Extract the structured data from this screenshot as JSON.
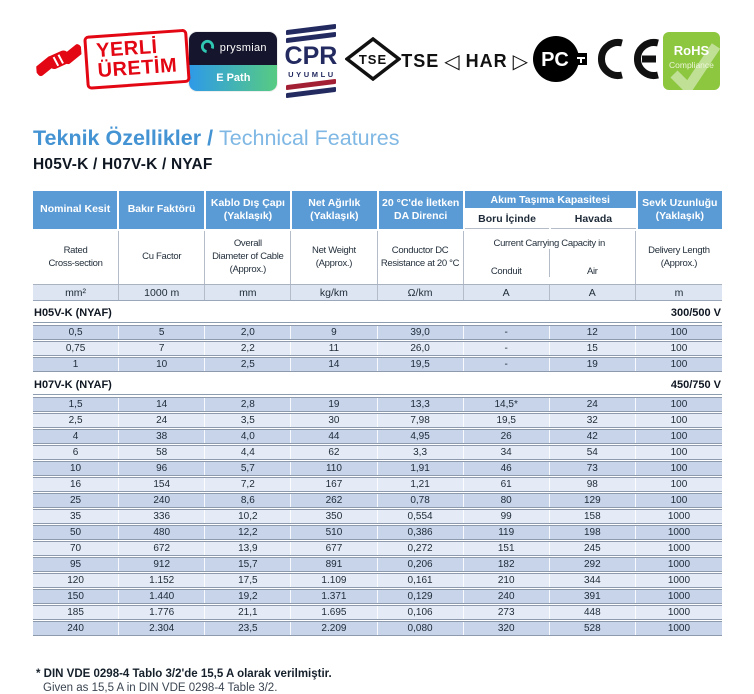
{
  "logos": {
    "yerli_uretim": {
      "line1": "YERLİ",
      "line2": "ÜRETİM"
    },
    "prysmian": {
      "brand": "prysmian",
      "product": "E Path"
    },
    "cpr": {
      "title": "CPR",
      "subtitle": "UYUMLU"
    },
    "tse_diamond": "TSE",
    "tse_har": {
      "tse": "TSE",
      "left_tri": "◁",
      "har": "HAR",
      "right_tri": "▷"
    },
    "pct": "PC",
    "rohs": {
      "line1": "RoHS",
      "line2": "Compliance"
    }
  },
  "title": {
    "tr": "Teknik Özellikler /",
    "en": "Technical Features"
  },
  "subtitle": "H05V-K / H07V-K / NYAF",
  "table": {
    "columns": [
      {
        "tr": "Nominal Kesit",
        "en": "Rated\nCross-section",
        "unit": "mm²"
      },
      {
        "tr": "Bakır Faktörü",
        "en": "Cu Factor",
        "unit": "1000 m"
      },
      {
        "tr": "Kablo Dış Çapı\n(Yaklaşık)",
        "en": "Overall\nDiameter of Cable\n(Approx.)",
        "unit": "mm"
      },
      {
        "tr": "Net Ağırlık\n(Yaklaşık)",
        "en": "Net Weight\n(Approx.)",
        "unit": "kg/km"
      },
      {
        "tr": "20 °C'de İletken\nDA Direnci",
        "en": "Conductor DC\nResistance at 20 °C",
        "unit": "Ω/km"
      },
      {
        "tr": "Boru İçinde",
        "en": "Conduit",
        "unit": "A"
      },
      {
        "tr": "Havada",
        "en": "Air",
        "unit": "A"
      },
      {
        "tr": "Sevk Uzunluğu\n(Yaklaşık)",
        "en": "Delivery Length\n(Approx.)",
        "unit": "m"
      }
    ],
    "current_group": {
      "tr": "Akım Taşıma Kapasitesi",
      "en": "Current Carrying Capacity in"
    },
    "sections": [
      {
        "name": "H05V-K (NYAF)",
        "voltage": "300/500 V",
        "rows": [
          [
            "0,5",
            "5",
            "2,0",
            "9",
            "39,0",
            "-",
            "12",
            "100"
          ],
          [
            "0,75",
            "7",
            "2,2",
            "11",
            "26,0",
            "-",
            "15",
            "100"
          ],
          [
            "1",
            "10",
            "2,5",
            "14",
            "19,5",
            "-",
            "19",
            "100"
          ]
        ]
      },
      {
        "name": "H07V-K (NYAF)",
        "voltage": "450/750 V",
        "rows": [
          [
            "1,5",
            "14",
            "2,8",
            "19",
            "13,3",
            "14,5*",
            "24",
            "100"
          ],
          [
            "2,5",
            "24",
            "3,5",
            "30",
            "7,98",
            "19,5",
            "32",
            "100"
          ],
          [
            "4",
            "38",
            "4,0",
            "44",
            "4,95",
            "26",
            "42",
            "100"
          ],
          [
            "6",
            "58",
            "4,4",
            "62",
            "3,3",
            "34",
            "54",
            "100"
          ],
          [
            "10",
            "96",
            "5,7",
            "110",
            "1,91",
            "46",
            "73",
            "100"
          ],
          [
            "16",
            "154",
            "7,2",
            "167",
            "1,21",
            "61",
            "98",
            "100"
          ],
          [
            "25",
            "240",
            "8,6",
            "262",
            "0,78",
            "80",
            "129",
            "100"
          ],
          [
            "35",
            "336",
            "10,2",
            "350",
            "0,554",
            "99",
            "158",
            "1000"
          ],
          [
            "50",
            "480",
            "12,2",
            "510",
            "0,386",
            "119",
            "198",
            "1000"
          ],
          [
            "70",
            "672",
            "13,9",
            "677",
            "0,272",
            "151",
            "245",
            "1000"
          ],
          [
            "95",
            "912",
            "15,7",
            "891",
            "0,206",
            "182",
            "292",
            "1000"
          ],
          [
            "120",
            "1.152",
            "17,5",
            "1.109",
            "0,161",
            "210",
            "344",
            "1000"
          ],
          [
            "150",
            "1.440",
            "19,2",
            "1.371",
            "0,129",
            "240",
            "391",
            "1000"
          ],
          [
            "185",
            "1.776",
            "21,1",
            "1.695",
            "0,106",
            "273",
            "448",
            "1000"
          ],
          [
            "240",
            "2.304",
            "23,5",
            "2.209",
            "0,080",
            "320",
            "528",
            "1000"
          ]
        ]
      }
    ]
  },
  "footnote": {
    "tr": "* DIN VDE 0298-4 Tablo 3/2'de 15,5 A olarak verilmiştir.",
    "en": "Given as 15,5 A in DIN VDE 0298-4 Table 3/2."
  },
  "colors": {
    "header_blue": "#5b9bd5",
    "row_dark": "#c7d4ea",
    "row_light": "#e4ebf6",
    "brand_red": "#e30613",
    "cpr_navy": "#232a60",
    "cpr_red": "#a31f34",
    "rohs_green": "#8dc63f"
  }
}
